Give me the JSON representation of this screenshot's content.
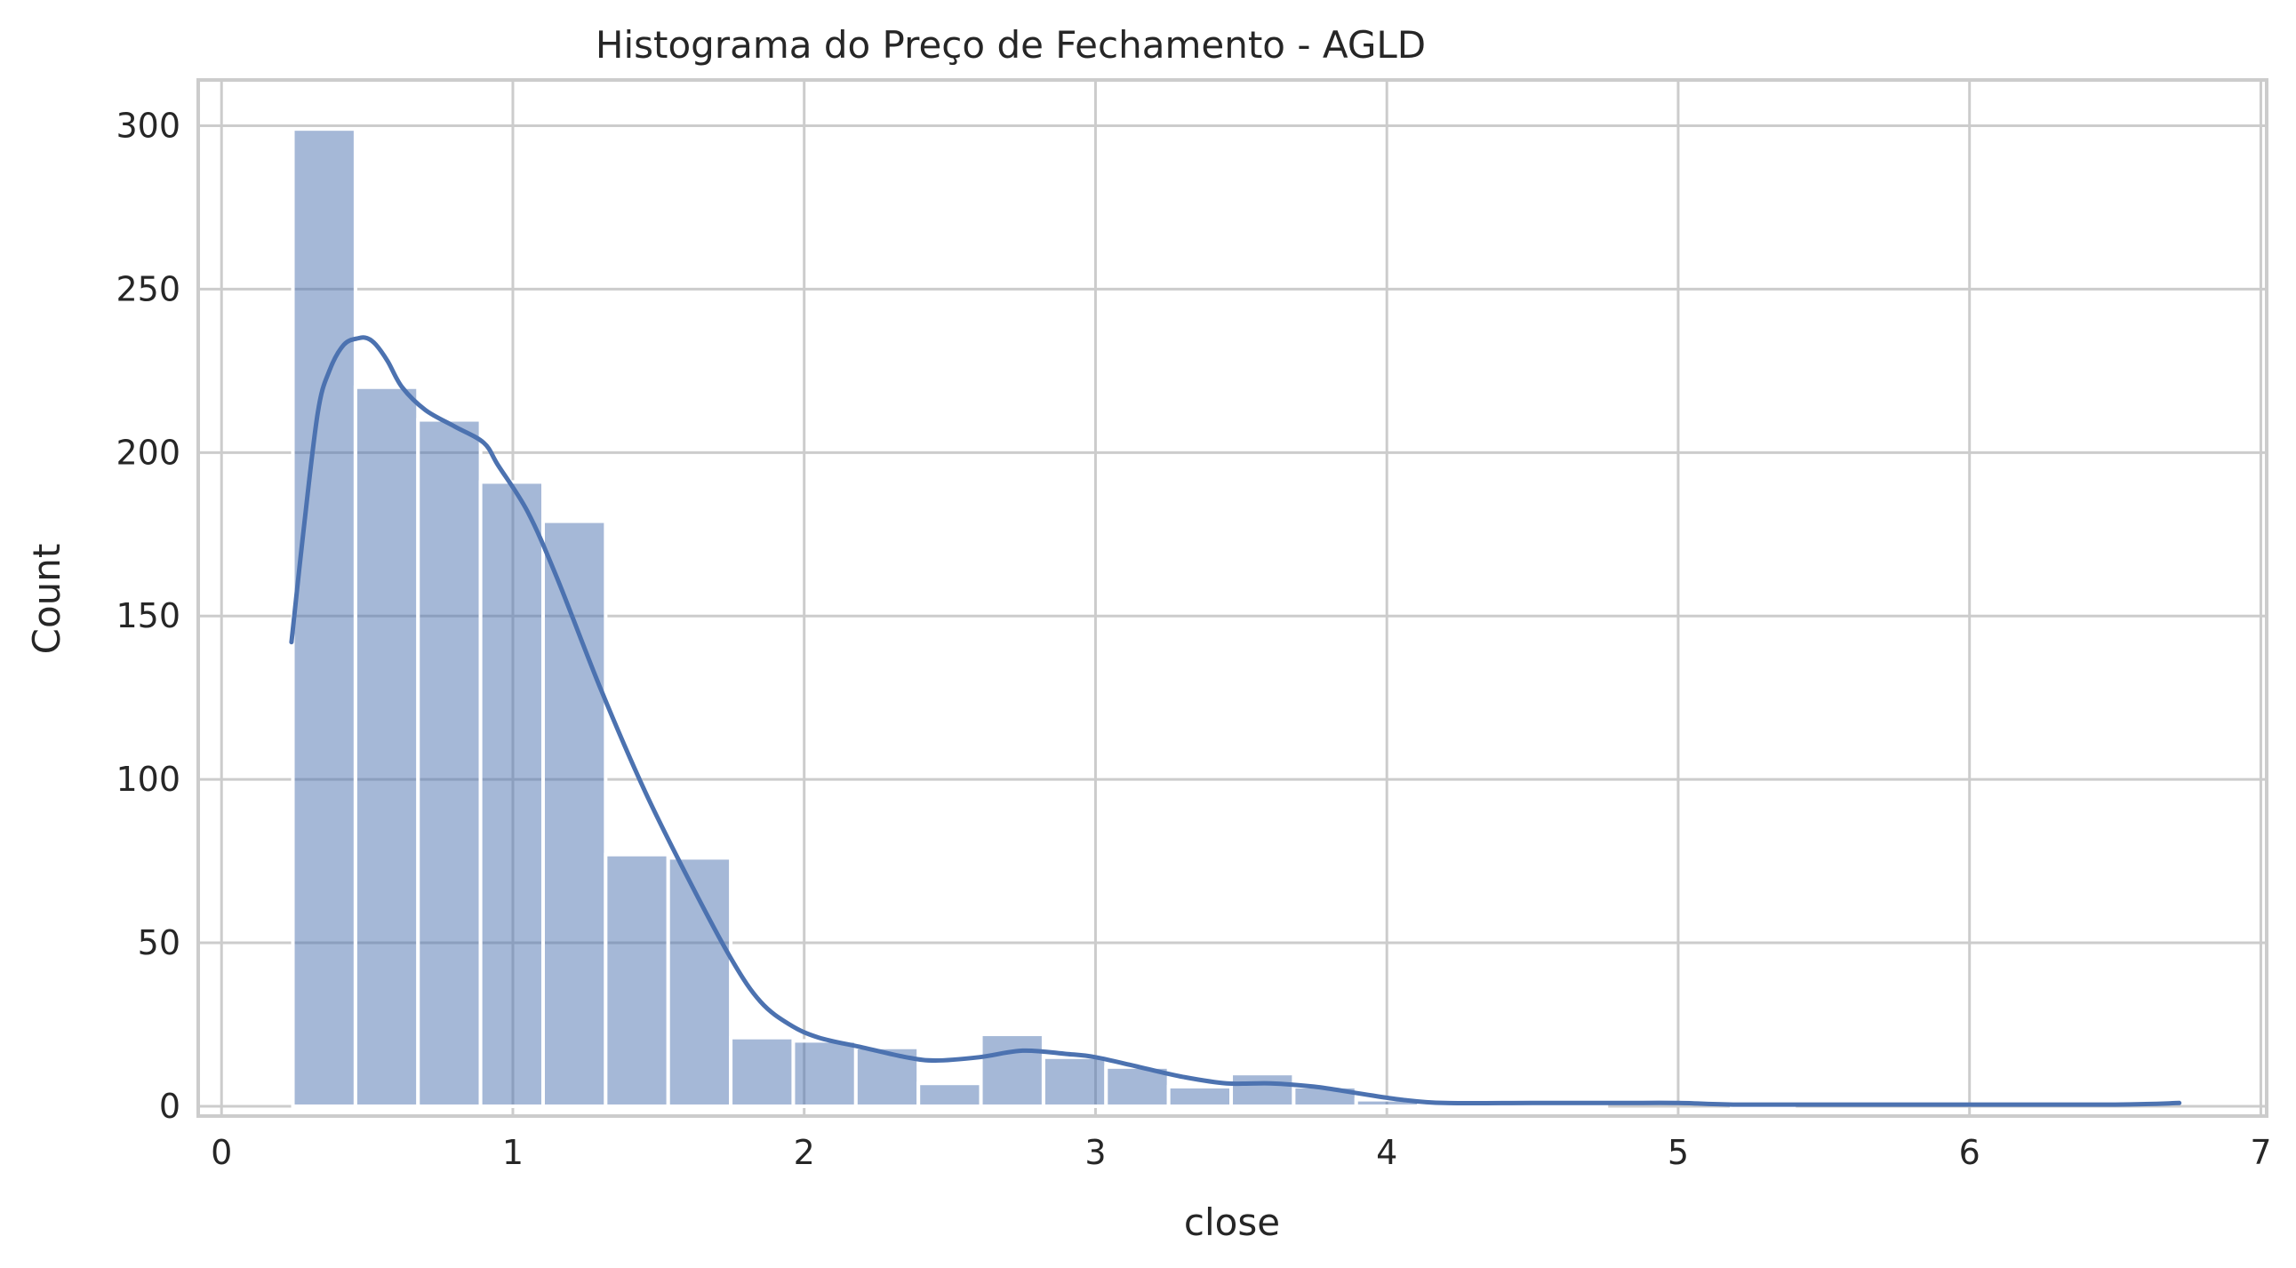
{
  "chart_data": {
    "type": "bar",
    "title": "Histograma do Preço de Fechamento - AGLD",
    "xlabel": "close",
    "ylabel": "Count",
    "xlim": [
      -0.08,
      7.02
    ],
    "ylim": [
      -3,
      314
    ],
    "xticks": [
      0,
      1,
      2,
      3,
      4,
      5,
      6,
      7
    ],
    "yticks": [
      0,
      50,
      100,
      150,
      200,
      250,
      300
    ],
    "grid": true,
    "legend": "none",
    "bar_color": "#4c72b0",
    "bin_start": 0.245,
    "bin_width": 0.2147,
    "counts": [
      299,
      220,
      210,
      191,
      179,
      77,
      76,
      21,
      20,
      18,
      7,
      22,
      15,
      12,
      6,
      10,
      6,
      2,
      1,
      1,
      1,
      0,
      0,
      1,
      0,
      0,
      0,
      0,
      0,
      0
    ],
    "kde": {
      "x": [
        0.24,
        0.28,
        0.33,
        0.37,
        0.42,
        0.47,
        0.5,
        0.53,
        0.57,
        0.62,
        0.7,
        0.8,
        0.9,
        0.95,
        1.05,
        1.15,
        1.3,
        1.45,
        1.6,
        1.75,
        1.85,
        1.95,
        2.05,
        2.2,
        2.35,
        2.45,
        2.6,
        2.75,
        2.9,
        3.0,
        3.15,
        3.3,
        3.45,
        3.6,
        3.75,
        3.9,
        4.05,
        4.2,
        4.5,
        4.8,
        5.0,
        5.2,
        5.5,
        6.0,
        6.5,
        6.72
      ],
      "y": [
        142,
        175,
        212,
        225,
        233,
        235,
        235,
        233,
        228,
        220,
        213,
        208,
        203,
        196,
        182,
        162,
        128,
        97,
        70,
        45,
        32,
        25,
        21,
        18,
        15,
        14,
        15,
        17,
        16,
        15,
        12,
        9,
        7,
        7,
        6,
        4,
        2,
        1,
        1,
        1,
        1,
        0.5,
        0.5,
        0.5,
        0.5,
        1
      ]
    }
  }
}
